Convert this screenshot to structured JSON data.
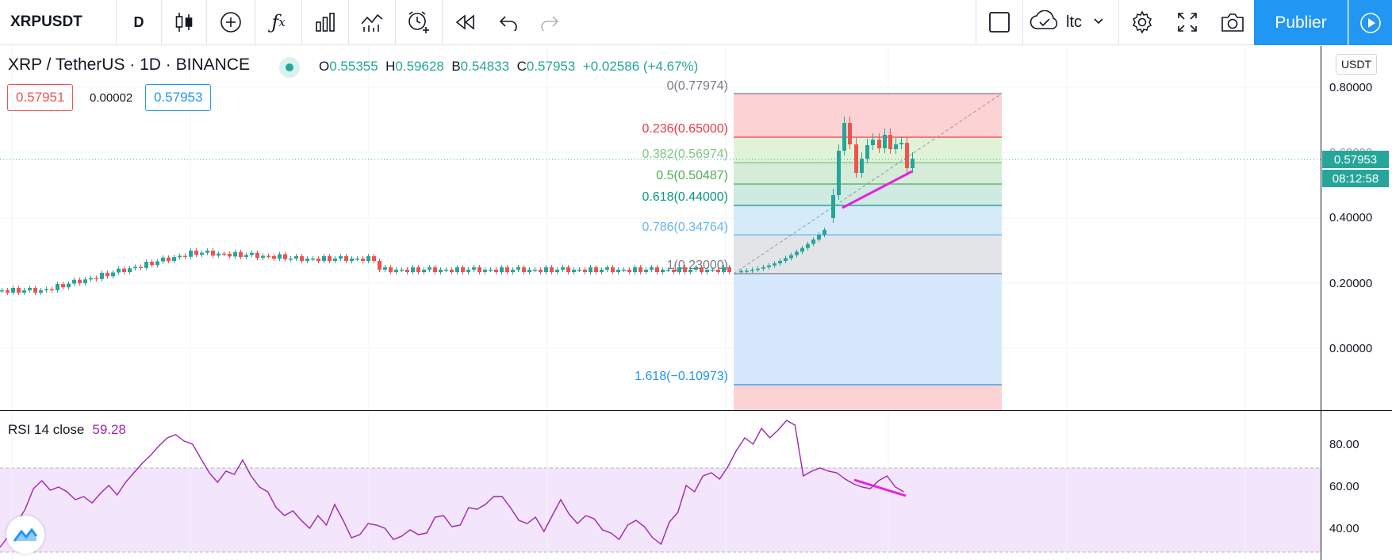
{
  "toolbar": {
    "symbol": "XRPUSDT",
    "interval": "D",
    "layout_name": "ltc",
    "publish_label": "Publier",
    "icons": [
      "candles-icon",
      "add-indicator-icon",
      "fx-icon",
      "bars-compare-icon",
      "templates-icon",
      "alert-icon",
      "replay-icon",
      "undo-icon",
      "redo-icon",
      "layout-select-icon",
      "cloud-icon",
      "chevron-down-icon",
      "settings-icon",
      "fullscreen-icon",
      "camera-icon",
      "play-icon"
    ]
  },
  "legend": {
    "title": "XRP / TetherUS · 1D · BINANCE",
    "o_key": "O",
    "o": "0.55355",
    "h_key": "H",
    "h": "0.59628",
    "b_key": "B",
    "b": "0.54833",
    "c_key": "C",
    "c": "0.57953",
    "change": "+0.02586 (+4.67%)",
    "sell_price": "0.57951",
    "spread": "0.00002",
    "buy_price": "0.57953"
  },
  "fib_labels": [
    {
      "text": "0(0.77974)",
      "color": "#787b86"
    },
    {
      "text": "0.236(0.65000)",
      "color": "#f23645"
    },
    {
      "text": "0.382(0.56974)",
      "color": "#81c784"
    },
    {
      "text": "0.5(0.50487)",
      "color": "#4caf50"
    },
    {
      "text": "0.618(0.44000)",
      "color": "#089981"
    },
    {
      "text": "0.786(0.34764)",
      "color": "#64b5f6"
    },
    {
      "text": "1(0.23000)",
      "color": "#787b86"
    },
    {
      "text": "1.618(−0.10973)",
      "color": "#2196f3"
    }
  ],
  "price_axis": {
    "currency": "USDT",
    "ticks": [
      "0.80000",
      "0.60000",
      "0.40000",
      "0.20000",
      "0.00000"
    ],
    "last_price": "0.57953",
    "countdown": "08:12:58"
  },
  "rsi": {
    "name": "RSI 14 close",
    "value": "59.28",
    "ticks": [
      "80.00",
      "60.00",
      "40.00"
    ]
  },
  "colors": {
    "up": "#26a69a",
    "down": "#ef5350",
    "rsi_line": "#9c27b0",
    "accent": "#2196f3",
    "trendline": "#e91ee3"
  }
}
